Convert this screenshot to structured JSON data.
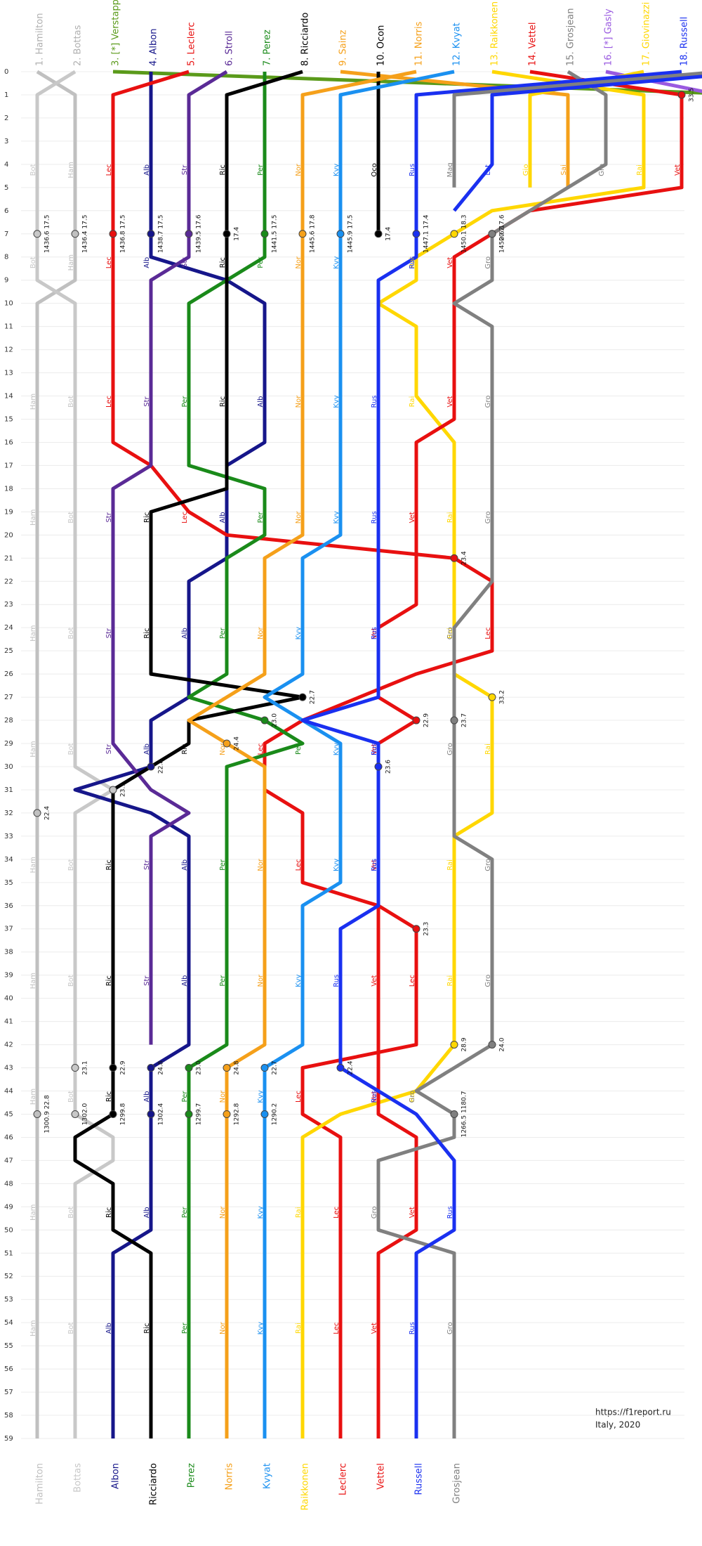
{
  "chart_data": {
    "type": "lap-chart",
    "ylim": [
      0,
      59
    ],
    "yticks": [
      0,
      1,
      2,
      3,
      4,
      5,
      6,
      7,
      8,
      9,
      10,
      11,
      12,
      13,
      14,
      15,
      16,
      17,
      18,
      19,
      20,
      21,
      22,
      23,
      24,
      25,
      26,
      27,
      28,
      29,
      30,
      31,
      32,
      33,
      34,
      35,
      36,
      37,
      38,
      39,
      40,
      41,
      42,
      43,
      44,
      45,
      46,
      47,
      48,
      49,
      50,
      51,
      52,
      53,
      54,
      55,
      56,
      57,
      58,
      59
    ],
    "xlim": [
      1,
      18
    ],
    "grid": true,
    "series": [
      {
        "name": "1. Hamilton",
        "abbr": "Ham",
        "color": "#c0c0c0",
        "laps": [
          0,
          1,
          9,
          10,
          59
        ],
        "positions": [
          1,
          2,
          2,
          1,
          1
        ],
        "stops": [
          {
            "lap": 7,
            "label": "1436.4 17.5"
          },
          {
            "lap": 32,
            "label": "22.4"
          },
          {
            "lap": 45,
            "label": "1300.9 22.8"
          }
        ]
      },
      {
        "name": "2. Bottas",
        "abbr": "Bot",
        "color": "#c8c8c8",
        "laps": [
          0,
          1,
          9,
          10,
          30,
          31,
          32,
          45,
          46,
          47,
          48,
          59
        ],
        "positions": [
          2,
          1,
          1,
          2,
          2,
          3,
          2,
          2,
          3,
          3,
          2,
          2
        ],
        "stops": [
          {
            "lap": 7,
            "label": "1436.6 17.5"
          },
          {
            "lap": 31,
            "label": "23.1"
          },
          {
            "lap": 43,
            "label": "23.1"
          },
          {
            "lap": 45,
            "label": "1302.0"
          }
        ]
      },
      {
        "name": "3. [*] Verstappen",
        "abbr": "Ver",
        "color": "#5a9a1a",
        "laps": [
          0,
          1
        ],
        "positions": [
          3,
          20
        ],
        "stops": []
      },
      {
        "name": "4. Albon",
        "abbr": "Alb",
        "color": "#16168a",
        "laps": [
          0,
          8,
          9,
          10,
          16,
          17,
          21,
          22,
          27,
          28,
          30,
          31,
          32,
          33,
          42,
          43,
          50,
          51,
          59
        ],
        "positions": [
          4,
          4,
          6,
          7,
          7,
          6,
          6,
          5,
          5,
          4,
          4,
          2,
          4,
          5,
          5,
          4,
          4,
          3,
          3
        ],
        "stops": [
          {
            "lap": 7,
            "label": "1438.7 17.5"
          },
          {
            "lap": 30,
            "label": "22.8"
          },
          {
            "lap": 43,
            "label": "24.8"
          },
          {
            "lap": 45,
            "label": "1302.4"
          }
        ]
      },
      {
        "name": "5. Leclerc",
        "abbr": "Lec",
        "color": "#e81010",
        "laps": [
          0,
          1,
          16,
          17,
          19,
          20,
          21,
          22,
          25,
          26,
          28,
          29,
          31,
          32,
          35,
          36,
          37,
          42,
          43,
          45,
          46,
          59
        ],
        "positions": [
          5,
          3,
          3,
          4,
          5,
          6,
          12,
          13,
          13,
          11,
          8,
          7,
          7,
          8,
          8,
          10,
          11,
          11,
          8,
          8,
          9,
          9
        ],
        "stops": [
          {
            "lap": 7,
            "label": "1436.8 17.5"
          },
          {
            "lap": 21,
            "label": "23.4"
          },
          {
            "lap": 37,
            "label": "23.3"
          }
        ]
      },
      {
        "name": "6. Stroll",
        "abbr": "Str",
        "color": "#5a2a96",
        "laps": [
          0,
          1,
          8,
          9,
          17,
          18,
          29,
          31,
          32,
          33,
          42
        ],
        "positions": [
          6,
          5,
          5,
          4,
          4,
          3,
          3,
          4,
          5,
          4,
          4
        ],
        "stops": [
          {
            "lap": 7,
            "label": "1439.5 17.6"
          }
        ]
      },
      {
        "name": "7. Perez",
        "abbr": "Per",
        "color": "#1a8a1a",
        "laps": [
          0,
          8,
          10,
          17,
          18,
          20,
          21,
          26,
          27,
          28,
          29,
          30,
          42,
          43,
          59
        ],
        "positions": [
          7,
          7,
          5,
          5,
          7,
          7,
          6,
          6,
          5,
          7,
          8,
          6,
          6,
          5,
          5
        ],
        "stops": [
          {
            "lap": 7,
            "label": "1441.5 17.5"
          },
          {
            "lap": 28,
            "label": "23.0"
          },
          {
            "lap": 43,
            "label": "23.0"
          },
          {
            "lap": 45,
            "label": "1299.7"
          }
        ]
      },
      {
        "name": "8. Ricciardo",
        "abbr": "Ric",
        "color": "#000000",
        "laps": [
          0,
          1,
          18,
          19,
          26,
          27,
          28,
          29,
          30,
          31,
          45,
          46,
          47,
          48,
          50,
          51,
          59
        ],
        "positions": [
          8,
          6,
          6,
          4,
          4,
          8,
          5,
          5,
          4,
          3,
          3,
          2,
          2,
          3,
          3,
          4,
          4
        ],
        "stops": [
          {
            "lap": 7,
            "label": "17.4"
          },
          {
            "lap": 27,
            "label": "22.7"
          },
          {
            "lap": 43,
            "label": "22.9"
          },
          {
            "lap": 45,
            "label": "1299.8"
          }
        ]
      },
      {
        "name": "9. Sainz",
        "abbr": "Sai",
        "color": "#f5a01a",
        "laps": [
          0,
          1,
          5
        ],
        "positions": [
          9,
          15,
          15
        ],
        "stops": []
      },
      {
        "name": "10. Ocon",
        "abbr": "Oco",
        "color": "#000000",
        "laps": [
          0,
          7
        ],
        "positions": [
          10,
          10
        ],
        "stops": [
          {
            "lap": 7,
            "label": "17.4"
          }
        ]
      },
      {
        "name": "11. Norris",
        "abbr": "Nor",
        "color": "#f5a01a",
        "laps": [
          0,
          1,
          20,
          21,
          26,
          28,
          29,
          30,
          42,
          43,
          59
        ],
        "positions": [
          11,
          8,
          8,
          7,
          7,
          5,
          6,
          7,
          7,
          6,
          6
        ],
        "stops": [
          {
            "lap": 7,
            "label": "1445.6 17.8"
          },
          {
            "lap": 29,
            "label": "24.4"
          },
          {
            "lap": 43,
            "label": "24.8"
          },
          {
            "lap": 45,
            "label": "1292.8"
          }
        ]
      },
      {
        "name": "12. Kvyat",
        "abbr": "Kvy",
        "color": "#1a90f0",
        "laps": [
          0,
          1,
          20,
          21,
          26,
          27,
          29,
          35,
          36,
          42,
          43,
          59
        ],
        "positions": [
          12,
          9,
          9,
          8,
          8,
          7,
          9,
          9,
          8,
          8,
          7,
          7
        ],
        "stops": [
          {
            "lap": 7,
            "label": "1445.9 17.5"
          },
          {
            "lap": 43,
            "label": "22.7"
          },
          {
            "lap": 45,
            "label": "1290.2"
          }
        ]
      },
      {
        "name": "13. Raikkonen",
        "abbr": "Rai",
        "color": "#ffd700",
        "laps": [
          0,
          1,
          5,
          6,
          7,
          8,
          9,
          10,
          11,
          14,
          16,
          26,
          27,
          32,
          33,
          42,
          44,
          45,
          46,
          59
        ],
        "positions": [
          13,
          17,
          17,
          13,
          12,
          11,
          11,
          10,
          11,
          11,
          12,
          12,
          13,
          13,
          12,
          12,
          11,
          9,
          8,
          8
        ],
        "stops": [
          {
            "lap": 7,
            "label": "1450.1 18.3"
          },
          {
            "lap": 27,
            "label": "33.2"
          },
          {
            "lap": 42,
            "label": "28.9"
          }
        ]
      },
      {
        "name": "14. Vettel",
        "abbr": "Vet",
        "color": "#e81010",
        "laps": [
          0,
          1,
          5,
          6,
          7,
          8,
          15,
          16,
          23,
          24,
          27,
          28,
          29,
          45,
          46,
          50,
          51,
          59
        ],
        "positions": [
          14,
          18,
          18,
          14,
          13,
          12,
          12,
          11,
          11,
          10,
          10,
          11,
          10,
          10,
          11,
          11,
          10,
          10
        ],
        "stops": [
          {
            "lap": 1,
            "label": "33.5"
          },
          {
            "lap": 7,
            "label": "1450.6 17.6"
          },
          {
            "lap": 28,
            "label": "22.9"
          }
        ]
      },
      {
        "name": "15. Grosjean",
        "abbr": "Gro",
        "color": "#808080",
        "laps": [
          0,
          1,
          4,
          6,
          7,
          9,
          10,
          11,
          22,
          24,
          28,
          33,
          34,
          42,
          44,
          45,
          46,
          47,
          50,
          51,
          59
        ],
        "positions": [
          15,
          16,
          16,
          14,
          13,
          13,
          12,
          13,
          13,
          12,
          12,
          12,
          13,
          13,
          11,
          12,
          12,
          10,
          10,
          12,
          12
        ],
        "stops": [
          {
            "lap": 7,
            "label": "20.2"
          },
          {
            "lap": 28,
            "label": "23.7"
          },
          {
            "lap": 42,
            "label": "24.0"
          },
          {
            "lap": 45,
            "label": "1266.5 1180.7"
          }
        ]
      },
      {
        "name": "16. [*] Gasly",
        "abbr": "Gas",
        "color": "#9a5ae0",
        "laps": [
          0,
          1
        ],
        "positions": [
          16,
          19
        ],
        "stops": []
      },
      {
        "name": "17. Giovinazzi",
        "abbr": "Gio",
        "color": "#ffd700",
        "laps": [
          0,
          1,
          5
        ],
        "positions": [
          17,
          14,
          14
        ],
        "stops": []
      },
      {
        "name": "18. Russell",
        "abbr": "Rus",
        "color": "#1a30f0",
        "laps": [
          0,
          1,
          8,
          9,
          27,
          28,
          29,
          36,
          37,
          43,
          45,
          47,
          50,
          51,
          59
        ],
        "positions": [
          18,
          11,
          11,
          10,
          10,
          8,
          10,
          10,
          9,
          9,
          11,
          12,
          12,
          11,
          11
        ],
        "stops": [
          {
            "lap": 7,
            "label": "1447.1 17.4"
          },
          {
            "lap": 30,
            "label": "23.6"
          },
          {
            "lap": 43,
            "label": "22.4"
          }
        ]
      },
      {
        "abbr": "Mag",
        "color": "#808080",
        "laps": [
          0,
          1,
          5
        ],
        "positions": [
          19,
          12,
          12
        ],
        "stops": []
      },
      {
        "abbr": "Lat",
        "color": "#1a30f0",
        "laps": [
          0,
          1,
          4,
          6
        ],
        "positions": [
          20,
          13,
          13,
          12
        ],
        "stops": []
      }
    ],
    "finish": [
      {
        "name": "Hamilton",
        "color": "#c0c0c0"
      },
      {
        "name": "Bottas",
        "color": "#c8c8c8"
      },
      {
        "name": "Albon",
        "color": "#16168a"
      },
      {
        "name": "Ricciardo",
        "color": "#000000"
      },
      {
        "name": "Perez",
        "color": "#1a8a1a"
      },
      {
        "name": "Norris",
        "color": "#f5a01a"
      },
      {
        "name": "Kvyat",
        "color": "#1a90f0"
      },
      {
        "name": "Raikkonen",
        "color": "#ffd700"
      },
      {
        "name": "Leclerc",
        "color": "#e81010"
      },
      {
        "name": "Vettel",
        "color": "#e81010"
      },
      {
        "name": "Russell",
        "color": "#1a30f0"
      },
      {
        "name": "Grosjean",
        "color": "#808080"
      }
    ],
    "source": "https://f1report.ru",
    "subtitle": "Italy, 2020"
  }
}
